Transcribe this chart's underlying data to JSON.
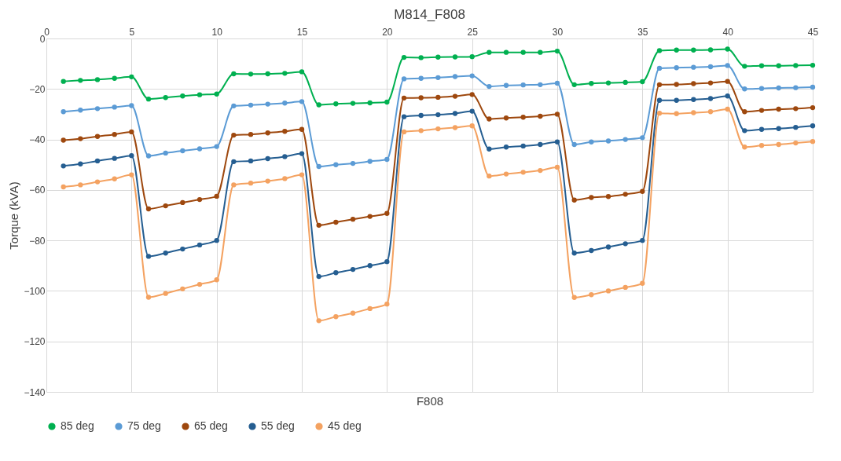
{
  "chart_data": {
    "type": "line",
    "title": "M814_F808",
    "xlabel": "F808",
    "ylabel": "Torque (kVA)",
    "x": [
      1,
      2,
      3,
      4,
      5,
      6,
      7,
      8,
      9,
      10,
      11,
      12,
      13,
      14,
      15,
      16,
      17,
      18,
      19,
      20,
      21,
      22,
      23,
      24,
      25,
      26,
      27,
      28,
      29,
      30,
      31,
      32,
      33,
      34,
      35,
      36,
      37,
      38,
      39,
      40,
      41,
      42,
      43,
      44,
      45
    ],
    "xlim": [
      0,
      45
    ],
    "xticks": [
      0,
      5,
      10,
      15,
      20,
      25,
      30,
      35,
      40,
      45
    ],
    "ylim": [
      -140,
      0
    ],
    "yticks": [
      -140,
      -120,
      -100,
      -80,
      -60,
      -40,
      -20,
      0
    ],
    "grid": true,
    "legend": "bottom",
    "marker": "circle",
    "line_style": "solid",
    "series": [
      {
        "name": "85 deg",
        "color": "#00b050",
        "values": [
          -17,
          -16.6,
          -16.3,
          -15.8,
          -15.2,
          -24,
          -23.4,
          -22.8,
          -22.3,
          -22,
          -14,
          -14.1,
          -14,
          -13.8,
          -13.2,
          -26.3,
          -25.9,
          -25.7,
          -25.5,
          -25.2,
          -7.5,
          -7.6,
          -7.4,
          -7.3,
          -7.2,
          -5.5,
          -5.5,
          -5.5,
          -5.5,
          -5,
          -18.3,
          -17.8,
          -17.6,
          -17.4,
          -17.1,
          -4.8,
          -4.6,
          -4.6,
          -4.5,
          -4.2,
          -11,
          -10.8,
          -10.8,
          -10.7,
          -10.6
        ]
      },
      {
        "name": "75 deg",
        "color": "#5b9bd5",
        "values": [
          -29,
          -28.4,
          -27.8,
          -27.2,
          -26.6,
          -46.5,
          -45.4,
          -44.5,
          -43.7,
          -42.8,
          -26.7,
          -26.4,
          -26,
          -25.6,
          -25,
          -50.7,
          -50,
          -49.5,
          -48.7,
          -47.9,
          -16,
          -15.8,
          -15.5,
          -15.1,
          -14.8,
          -19,
          -18.6,
          -18.4,
          -18.3,
          -17.7,
          -42,
          -41,
          -40.6,
          -40,
          -39.3,
          -11.8,
          -11.6,
          -11.4,
          -11.2,
          -10.7,
          -20,
          -19.8,
          -19.6,
          -19.5,
          -19.3
        ]
      },
      {
        "name": "65 deg",
        "color": "#9e480e",
        "values": [
          -40.3,
          -39.7,
          -38.8,
          -38,
          -37,
          -67.5,
          -66.3,
          -65,
          -63.8,
          -62.5,
          -38.3,
          -38,
          -37.4,
          -36.8,
          -36,
          -74,
          -72.8,
          -71.6,
          -70.5,
          -69.3,
          -23.6,
          -23.5,
          -23.3,
          -22.9,
          -22.2,
          -31.9,
          -31.5,
          -31.2,
          -30.8,
          -30,
          -64,
          -63,
          -62.6,
          -61.7,
          -60.6,
          -18.3,
          -18.2,
          -17.9,
          -17.6,
          -17,
          -29,
          -28.5,
          -28,
          -27.8,
          -27.4
        ]
      },
      {
        "name": "55 deg",
        "color": "#255e91",
        "values": [
          -50.5,
          -49.7,
          -48.5,
          -47.5,
          -46.4,
          -86.3,
          -85,
          -83.4,
          -81.8,
          -80,
          -48.8,
          -48.5,
          -47.6,
          -46.8,
          -45.6,
          -94.3,
          -92.8,
          -91.5,
          -90,
          -88.4,
          -31,
          -30.5,
          -30.2,
          -29.7,
          -28.8,
          -43.8,
          -43,
          -42.6,
          -42,
          -41,
          -85,
          -84,
          -82.6,
          -81.3,
          -80,
          -24.5,
          -24.5,
          -24.2,
          -23.8,
          -22.8,
          -36.5,
          -36,
          -35.7,
          -35.2,
          -34.6
        ]
      },
      {
        "name": "45 deg",
        "color": "#f4a261",
        "values": [
          -58.8,
          -58,
          -56.8,
          -55.6,
          -54,
          -102.5,
          -101,
          -99.2,
          -97.4,
          -95.6,
          -58,
          -57.3,
          -56.5,
          -55.5,
          -54,
          -111.8,
          -110.2,
          -108.8,
          -107,
          -105.2,
          -37,
          -36.5,
          -35.8,
          -35.3,
          -34.6,
          -54.5,
          -53.7,
          -53,
          -52.3,
          -51,
          -102.6,
          -101.5,
          -100,
          -98.6,
          -97,
          -29.6,
          -29.8,
          -29.4,
          -29,
          -28,
          -43,
          -42.4,
          -42,
          -41.4,
          -40.8
        ]
      }
    ]
  }
}
